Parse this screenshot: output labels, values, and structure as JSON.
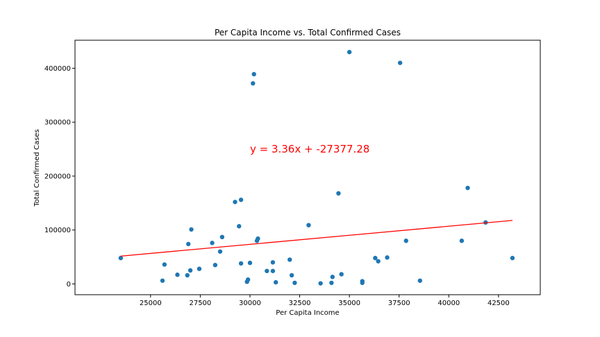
{
  "chart_data": {
    "type": "scatter",
    "title": "Per Capita Income vs. Total Confirmed Cases",
    "xlabel": "Per Capita Income",
    "ylabel": "Total Confirmed Cases",
    "xlim": [
      21200,
      44600
    ],
    "ylim": [
      -20000,
      452000
    ],
    "xticks": [
      25000,
      27500,
      30000,
      32500,
      35000,
      37500,
      40000,
      42500
    ],
    "yticks": [
      0,
      100000,
      200000,
      300000,
      400000
    ],
    "grid": false,
    "point_color": "#1f77b4",
    "line_color": "#ff0000",
    "points": [
      [
        23500,
        48000
      ],
      [
        25600,
        6000
      ],
      [
        25700,
        36000
      ],
      [
        26350,
        17000
      ],
      [
        26850,
        16000
      ],
      [
        26900,
        74000
      ],
      [
        27000,
        25000
      ],
      [
        27050,
        101000
      ],
      [
        27450,
        28000
      ],
      [
        28100,
        76000
      ],
      [
        28250,
        35000
      ],
      [
        28500,
        60000
      ],
      [
        28600,
        87000
      ],
      [
        29250,
        152000
      ],
      [
        29450,
        107000
      ],
      [
        29550,
        156000
      ],
      [
        29550,
        38000
      ],
      [
        29850,
        4000
      ],
      [
        29900,
        8000
      ],
      [
        30000,
        39000
      ],
      [
        30150,
        372000
      ],
      [
        30200,
        389000
      ],
      [
        30350,
        80000
      ],
      [
        30400,
        84000
      ],
      [
        30850,
        24000
      ],
      [
        31150,
        40000
      ],
      [
        31150,
        24000
      ],
      [
        31300,
        3000
      ],
      [
        32000,
        45000
      ],
      [
        32100,
        16000
      ],
      [
        32250,
        2000
      ],
      [
        32950,
        109000
      ],
      [
        33550,
        1000
      ],
      [
        34100,
        2000
      ],
      [
        34150,
        13000
      ],
      [
        34450,
        168000
      ],
      [
        34600,
        18000
      ],
      [
        35000,
        430000
      ],
      [
        35650,
        2000
      ],
      [
        35650,
        5000
      ],
      [
        36300,
        48000
      ],
      [
        36450,
        42000
      ],
      [
        36900,
        49000
      ],
      [
        37550,
        410000
      ],
      [
        37850,
        80000
      ],
      [
        38550,
        6000
      ],
      [
        40650,
        80000
      ],
      [
        40950,
        178000
      ],
      [
        41850,
        114000
      ],
      [
        43200,
        48000
      ]
    ],
    "regression": {
      "slope": 3.36,
      "intercept": -27377.28,
      "x_range": [
        23500,
        43200
      ]
    },
    "annotation": {
      "text": "y = 3.36x + -27377.28",
      "x": 30000,
      "y": 250000,
      "color": "#ff0000"
    }
  }
}
